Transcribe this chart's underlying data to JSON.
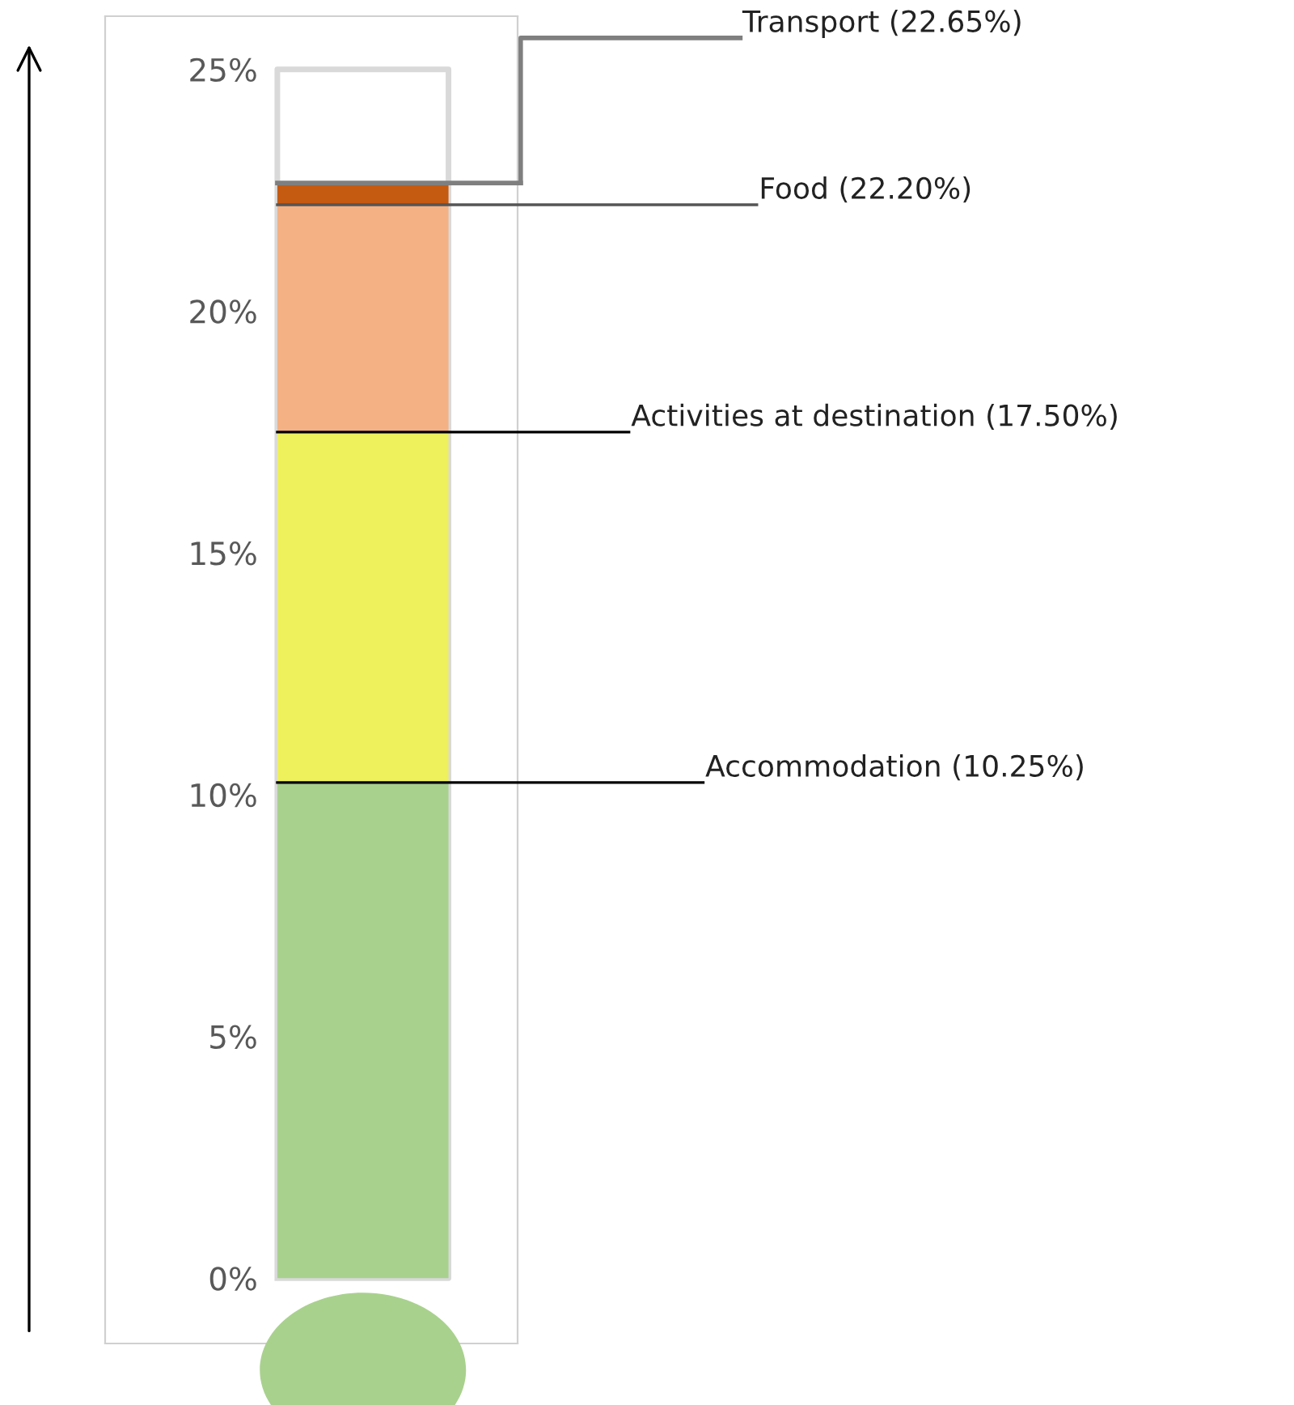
{
  "chart_data": {
    "type": "bar",
    "stacked": true,
    "categories": [
      null
    ],
    "series": [
      {
        "color": "#a9d18e",
        "values": [
          10.25
        ]
      },
      {
        "color": "#eef05c",
        "values": [
          7.25
        ]
      },
      {
        "color": "#f4b183",
        "values": [
          4.7
        ]
      },
      {
        "color": "#c55a11",
        "values": [
          0.45
        ]
      }
    ],
    "ref_lines": [
      {
        "axis": "y",
        "value": 10.25,
        "label": "Accommodation (10.25%)",
        "color": "#000000"
      },
      {
        "axis": "y",
        "value": 17.5,
        "label": "Activities at destination (17.50%)",
        "color": "#000000"
      },
      {
        "axis": "y",
        "value": 22.2,
        "label": "Food (22.20%)",
        "color": "#555555"
      },
      {
        "axis": "y",
        "value": 22.65,
        "label": "Transport (22.65%)",
        "color": "#7f7f7f"
      }
    ],
    "ylim": [
      -1.35,
      26.1
    ],
    "yticks": [
      {
        "value": 0,
        "label": "0%"
      },
      {
        "value": 5,
        "label": "5%"
      },
      {
        "value": 10,
        "label": "10%"
      },
      {
        "value": 15,
        "label": "15%"
      },
      {
        "value": 20,
        "label": "20%"
      },
      {
        "value": 25,
        "label": "25%"
      }
    ],
    "grid": false,
    "legend": false
  }
}
